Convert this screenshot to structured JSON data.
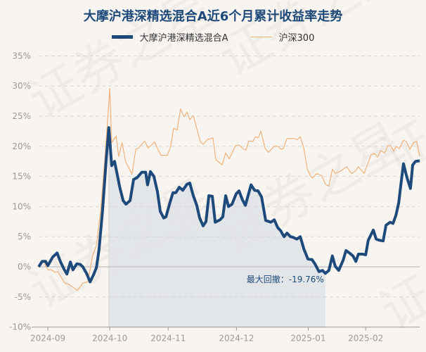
{
  "chart_data": {
    "type": "line",
    "title": "大摩沪港深精选混合A近6个月累计收益率走势",
    "xlabel": "",
    "ylabel": "",
    "x_unit": "trading day index",
    "xlim": [
      0,
      120
    ],
    "ylim": [
      -10,
      35
    ],
    "yticks": [
      35,
      30,
      25,
      20,
      15,
      10,
      5,
      0,
      -5,
      -10
    ],
    "ytick_labels": [
      "35%",
      "30%",
      "25%",
      "20%",
      "15%",
      "10%",
      "5%",
      "0%",
      "-5%",
      "-10%"
    ],
    "xticks": [
      {
        "x": 2.9,
        "label": "2024-09"
      },
      {
        "x": 22.4,
        "label": "2024-10"
      },
      {
        "x": 40.8,
        "label": "2024-11"
      },
      {
        "x": 62.3,
        "label": "2024-12"
      },
      {
        "x": 84.9,
        "label": "2025-01"
      },
      {
        "x": 103.0,
        "label": "2025-02"
      }
    ],
    "grid": true,
    "legend_position": "top-center",
    "colors": {
      "fund": "#1d4a7a",
      "index": "#f0b27a",
      "drawdown_fill": "#dfe3e7"
    },
    "series": [
      {
        "name": "大摩沪港深精选混合A",
        "points": [
          [
            0,
            0
          ],
          [
            1.1,
            0.9
          ],
          [
            2.2,
            0.9
          ],
          [
            2.9,
            0.2
          ],
          [
            4.4,
            1.6
          ],
          [
            5.8,
            2.3
          ],
          [
            6.9,
            0.8
          ],
          [
            8,
            -0.4
          ],
          [
            8.9,
            -1.2
          ],
          [
            10,
            0.8
          ],
          [
            10.8,
            -0.5
          ],
          [
            12,
            0.5
          ],
          [
            13.1,
            0.4
          ],
          [
            13.9,
            0
          ],
          [
            15.1,
            -1.1
          ],
          [
            16.2,
            -2.5
          ],
          [
            17.3,
            -1.3
          ],
          [
            18.2,
            -0.1
          ],
          [
            19,
            2.8
          ],
          [
            20.1,
            9.2
          ],
          [
            21.3,
            18
          ],
          [
            22.1,
            23.1
          ],
          [
            23,
            16.8
          ],
          [
            23.9,
            17.5
          ],
          [
            24.6,
            15.7
          ],
          [
            25.5,
            13.3
          ],
          [
            26.6,
            11
          ],
          [
            27.5,
            10.4
          ],
          [
            28.8,
            11
          ],
          [
            29.9,
            14.5
          ],
          [
            31,
            14.8
          ],
          [
            32.5,
            15.7
          ],
          [
            33.7,
            15.7
          ],
          [
            34.3,
            13.6
          ],
          [
            35.2,
            15.8
          ],
          [
            36.3,
            15
          ],
          [
            37.4,
            12.5
          ],
          [
            38.3,
            9.2
          ],
          [
            39.4,
            8.1
          ],
          [
            40.1,
            8.3
          ],
          [
            41.2,
            10.4
          ],
          [
            42.3,
            12.3
          ],
          [
            43.2,
            12.3
          ],
          [
            44.3,
            13.2
          ],
          [
            45.4,
            12.7
          ],
          [
            46.7,
            13.7
          ],
          [
            47.6,
            13.9
          ],
          [
            48.7,
            11.8
          ],
          [
            49.8,
            10.2
          ],
          [
            50.7,
            8.1
          ],
          [
            51.8,
            6.8
          ],
          [
            52.7,
            7.5
          ],
          [
            53.6,
            11.8
          ],
          [
            54.7,
            11.7
          ],
          [
            55.6,
            7.4
          ],
          [
            57.1,
            7.8
          ],
          [
            58,
            8.3
          ],
          [
            58.9,
            11.8
          ],
          [
            59.8,
            10
          ],
          [
            60.9,
            10.4
          ],
          [
            62.2,
            12.1
          ],
          [
            63.1,
            12.6
          ],
          [
            64.2,
            11.1
          ],
          [
            65.1,
            10.2
          ],
          [
            66.9,
            13.6
          ],
          [
            68,
            12.7
          ],
          [
            69.1,
            12.6
          ],
          [
            70.2,
            11.6
          ],
          [
            71.5,
            7.7
          ],
          [
            73.1,
            7.4
          ],
          [
            74.2,
            7.8
          ],
          [
            75.3,
            6.5
          ],
          [
            76.2,
            6
          ],
          [
            77.3,
            5
          ],
          [
            78.2,
            5.6
          ],
          [
            79.3,
            5
          ],
          [
            80.1,
            4.9
          ],
          [
            81.3,
            4.6
          ],
          [
            82.4,
            5
          ],
          [
            83.5,
            3
          ],
          [
            84.8,
            1.3
          ],
          [
            86.1,
            1.2
          ],
          [
            87,
            0.5
          ],
          [
            88.3,
            -0.8
          ],
          [
            89.4,
            -0.6
          ],
          [
            90.3,
            -1.1
          ],
          [
            91.4,
            -0.6
          ],
          [
            92.5,
            1.8
          ],
          [
            93.4,
            0.1
          ],
          [
            94.5,
            -0.6
          ],
          [
            95.9,
            1.1
          ],
          [
            96.8,
            2.7
          ],
          [
            98.1,
            2.2
          ],
          [
            99,
            1.8
          ],
          [
            99.9,
            0.9
          ],
          [
            100.7,
            2.1
          ],
          [
            102.1,
            2.1
          ],
          [
            103,
            2
          ],
          [
            103.8,
            4.4
          ],
          [
            105.4,
            6.1
          ],
          [
            106.3,
            4.6
          ],
          [
            107.4,
            4.4
          ],
          [
            108.5,
            4.3
          ],
          [
            109.4,
            6.9
          ],
          [
            110.7,
            7.4
          ],
          [
            111.6,
            7.2
          ],
          [
            112.5,
            8.5
          ],
          [
            113.4,
            10.6
          ],
          [
            114,
            13.3
          ],
          [
            114.9,
            17.1
          ],
          [
            116,
            14.8
          ],
          [
            117.1,
            13
          ],
          [
            117.8,
            16.9
          ],
          [
            118.7,
            17.5
          ],
          [
            120,
            17.6
          ]
        ]
      },
      {
        "name": "沪深300",
        "points": [
          [
            0,
            -0.1
          ],
          [
            1.5,
            0.9
          ],
          [
            2.9,
            -0.5
          ],
          [
            4,
            -0.5
          ],
          [
            5.1,
            -0.9
          ],
          [
            6,
            -0.8
          ],
          [
            8.2,
            -2.7
          ],
          [
            9.5,
            -2.9
          ],
          [
            12.2,
            -3.9
          ],
          [
            13.9,
            -2.7
          ],
          [
            15.5,
            -2.5
          ],
          [
            17,
            1.9
          ],
          [
            18.2,
            3.6
          ],
          [
            19.5,
            9.2
          ],
          [
            21,
            18.9
          ],
          [
            22.4,
            29.6
          ],
          [
            23,
            20.6
          ],
          [
            24.4,
            21.7
          ],
          [
            25.2,
            18.3
          ],
          [
            26.3,
            20.6
          ],
          [
            27.4,
            17.4
          ],
          [
            29.4,
            15.4
          ],
          [
            30.6,
            19.5
          ],
          [
            31.4,
            19.7
          ],
          [
            33.4,
            20.9
          ],
          [
            34.5,
            19.7
          ],
          [
            36.5,
            20.7
          ],
          [
            38.5,
            18.5
          ],
          [
            40.5,
            18.5
          ],
          [
            41.6,
            20
          ],
          [
            42.5,
            23
          ],
          [
            43.6,
            22.7
          ],
          [
            44.7,
            26.2
          ],
          [
            45.8,
            24.9
          ],
          [
            46.7,
            25.7
          ],
          [
            47.6,
            24.4
          ],
          [
            48.7,
            25.1
          ],
          [
            50.9,
            20.8
          ],
          [
            51.8,
            20.3
          ],
          [
            53.1,
            21.1
          ],
          [
            54.9,
            21.4
          ],
          [
            55.8,
            17.8
          ],
          [
            57.8,
            16.9
          ],
          [
            58.9,
            18.9
          ],
          [
            60,
            17.9
          ],
          [
            62,
            20.1
          ],
          [
            63.1,
            20.2
          ],
          [
            64.6,
            19.5
          ],
          [
            65.3,
            19.4
          ],
          [
            66.2,
            20.9
          ],
          [
            67.5,
            20.8
          ],
          [
            68.2,
            21.6
          ],
          [
            69.1,
            21.4
          ],
          [
            70,
            22.5
          ],
          [
            71.3,
            19.7
          ],
          [
            72.4,
            19
          ],
          [
            74.2,
            20
          ],
          [
            75.3,
            20
          ],
          [
            76.4,
            19.5
          ],
          [
            77,
            19.6
          ],
          [
            78.2,
            21.3
          ],
          [
            80.4,
            21.3
          ],
          [
            81.5,
            21.1
          ],
          [
            82.4,
            21.6
          ],
          [
            83.5,
            19.7
          ],
          [
            84.6,
            16.2
          ],
          [
            85.7,
            15
          ],
          [
            86.3,
            14.7
          ],
          [
            87.5,
            15.5
          ],
          [
            89.2,
            15.1
          ],
          [
            90.3,
            13.7
          ],
          [
            91.4,
            13.4
          ],
          [
            92.5,
            16.2
          ],
          [
            93.4,
            15.5
          ],
          [
            94.8,
            15.8
          ],
          [
            97,
            16.6
          ],
          [
            98.5,
            15.5
          ],
          [
            99.6,
            15.8
          ],
          [
            100.7,
            16.6
          ],
          [
            102.5,
            15.5
          ],
          [
            104.7,
            18.6
          ],
          [
            105.8,
            18.8
          ],
          [
            106.7,
            18.2
          ],
          [
            107.8,
            19.3
          ],
          [
            108.9,
            18.9
          ],
          [
            110,
            20.1
          ],
          [
            110.9,
            20.1
          ],
          [
            111.8,
            19.2
          ],
          [
            112.7,
            20
          ],
          [
            113.6,
            19.6
          ],
          [
            114.9,
            21
          ],
          [
            115.8,
            20.8
          ],
          [
            116.9,
            19.5
          ],
          [
            118,
            20.6
          ],
          [
            119.1,
            20.8
          ],
          [
            120,
            18.3
          ]
        ]
      }
    ],
    "max_drawdown": {
      "label": "最大回撤：-19.76%",
      "value": -19.76,
      "start_x": 22.1,
      "end_x": 90.3
    }
  },
  "watermark": "证券之星"
}
